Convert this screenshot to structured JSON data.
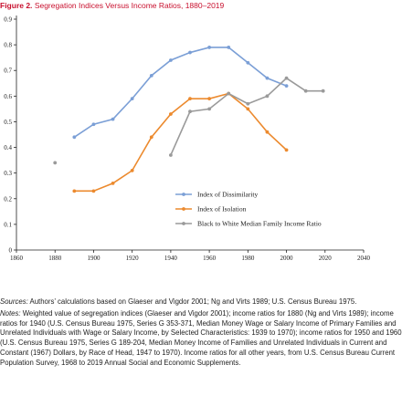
{
  "figure": {
    "label": "Figure 2.",
    "title": "Segregation Indices Versus Income Ratios, 1880–2019"
  },
  "chart_data": {
    "type": "line",
    "x_ticks": [
      1860,
      1880,
      1900,
      1920,
      1940,
      1960,
      1980,
      2000,
      2020,
      2040
    ],
    "y_ticks": [
      "0",
      "0.1",
      "0.2",
      "0.3",
      "0.4",
      "0.5",
      "0.6",
      "0.7",
      "0.8",
      "0.9"
    ],
    "xlim": [
      1860,
      2040
    ],
    "ylim": [
      0,
      0.9
    ],
    "grid": false,
    "legend_placement": "lower-right",
    "series": [
      {
        "name": "Index of Dissimilarity",
        "color": "#7b9fd6",
        "marker": "circle",
        "points": [
          [
            1890,
            0.44
          ],
          [
            1900,
            0.49
          ],
          [
            1910,
            0.51
          ],
          [
            1920,
            0.59
          ],
          [
            1930,
            0.68
          ],
          [
            1940,
            0.74
          ],
          [
            1950,
            0.77
          ],
          [
            1960,
            0.79
          ],
          [
            1970,
            0.79
          ],
          [
            1980,
            0.73
          ],
          [
            1990,
            0.67
          ],
          [
            2000,
            0.64
          ]
        ]
      },
      {
        "name": "Index of Isolation",
        "color": "#ec8a2e",
        "marker": "circle",
        "points": [
          [
            1890,
            0.23
          ],
          [
            1900,
            0.23
          ],
          [
            1910,
            0.26
          ],
          [
            1920,
            0.31
          ],
          [
            1930,
            0.44
          ],
          [
            1940,
            0.53
          ],
          [
            1950,
            0.59
          ],
          [
            1960,
            0.59
          ],
          [
            1970,
            0.61
          ],
          [
            1980,
            0.55
          ],
          [
            1990,
            0.46
          ],
          [
            2000,
            0.39
          ]
        ]
      },
      {
        "name": "Black to White Median Family Income Ratio",
        "color": "#9a9a9a",
        "marker": "circle",
        "points": [
          [
            1880,
            0.34
          ],
          [
            1940,
            0.37
          ],
          [
            1950,
            0.54
          ],
          [
            1960,
            0.55
          ],
          [
            1970,
            0.61
          ],
          [
            1980,
            0.57
          ],
          [
            1990,
            0.6
          ],
          [
            2000,
            0.67
          ],
          [
            2010,
            0.62
          ],
          [
            2019,
            0.62
          ]
        ],
        "segments": [
          [
            1,
            9
          ]
        ]
      }
    ]
  },
  "notes": {
    "sources_label": "Sources:",
    "sources_text": " Authors’ calculations based on Glaeser and Vigdor 2001; Ng and Virts 1989; U.S. Census Bureau 1975.",
    "notes_label": "Notes:",
    "notes_text": " Weighted value of segregation indices (Glaeser and Vigdor 2001); income ratios for 1880 (Ng and Virts 1989); income ratios for 1940 (U.S. Census Bureau 1975, Series G 353-371, Median Money Wage or Salary Income of Primary Families and Unrelated Individuals with Wage or Salary Income, by Selected Characteristics: 1939 to 1970); income ratios for 1950 and 1960 (U.S. Census Bureau 1975, Series G 189-204, Median Money Income of Families and Unrelated Individuals in Current and Constant (1967) Dollars, by Race of Head, 1947 to 1970). Income ratios for all other years, from U.S. Census Bureau Current Population Survey, 1968 to 2019 Annual Social and Economic Supplements."
  }
}
